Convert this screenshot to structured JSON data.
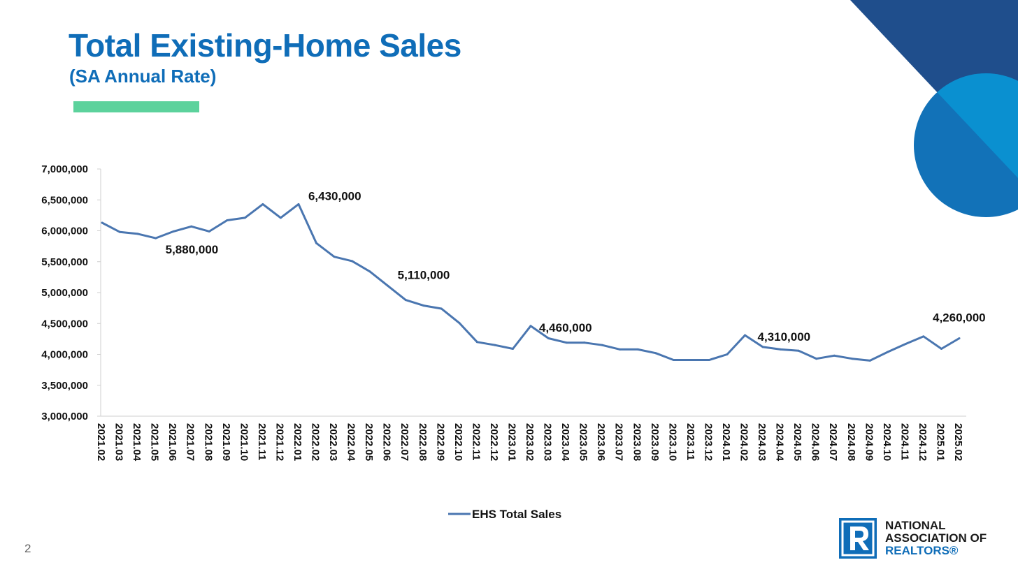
{
  "header": {
    "title": "Total Existing-Home Sales",
    "subtitle": "(SA Annual Rate)"
  },
  "colors": {
    "title": "#0f6db8",
    "accent_bar": "#5cd29c",
    "series_line": "#4a76b0",
    "deco_dark": "#1f4e8c",
    "deco_circle_light": "#0a90d0",
    "deco_circle_dark": "#1272b8"
  },
  "chart_data": {
    "type": "line",
    "title": "Total Existing-Home Sales",
    "subtitle": "(SA Annual Rate)",
    "xlabel": "",
    "ylabel": "",
    "ylim": [
      3000000,
      7000000
    ],
    "yticks": [
      3000000,
      3500000,
      4000000,
      4500000,
      5000000,
      5500000,
      6000000,
      6500000,
      7000000
    ],
    "ytick_labels": [
      "3,000,000",
      "3,500,000",
      "4,000,000",
      "4,500,000",
      "5,000,000",
      "5,500,000",
      "6,000,000",
      "6,500,000",
      "7,000,000"
    ],
    "grid": false,
    "legend_position": "bottom",
    "categories": [
      "2021.02",
      "2021.03",
      "2021.04",
      "2021.05",
      "2021.06",
      "2021.07",
      "2021.08",
      "2021.09",
      "2021.10",
      "2021.11",
      "2021.12",
      "2022.01",
      "2022.02",
      "2022.03",
      "2022.04",
      "2022.05",
      "2022.06",
      "2022.07",
      "2022.08",
      "2022.09",
      "2022.10",
      "2022.11",
      "2022.12",
      "2023.01",
      "2023.02",
      "2023.03",
      "2023.04",
      "2023.05",
      "2023.06",
      "2023.07",
      "2023.08",
      "2023.09",
      "2023.10",
      "2023.11",
      "2023.12",
      "2024.01",
      "2024.02",
      "2024.03",
      "2024.04",
      "2024.05",
      "2024.06",
      "2024.07",
      "2024.08",
      "2024.09",
      "2024.10",
      "2024.11",
      "2024.12",
      "2025.01",
      "2025.02"
    ],
    "series": [
      {
        "name": "EHS Total Sales",
        "values": [
          6130000,
          5980000,
          5950000,
          5880000,
          5990000,
          6070000,
          5990000,
          6170000,
          6210000,
          6430000,
          6210000,
          6430000,
          5800000,
          5580000,
          5510000,
          5340000,
          5110000,
          4880000,
          4790000,
          4740000,
          4510000,
          4200000,
          4150000,
          4090000,
          4460000,
          4260000,
          4190000,
          4190000,
          4150000,
          4080000,
          4080000,
          4020000,
          3910000,
          3910000,
          3910000,
          4000000,
          4310000,
          4120000,
          4080000,
          4060000,
          3930000,
          3980000,
          3930000,
          3900000,
          4040000,
          4170000,
          4290000,
          4090000,
          4260000
        ]
      }
    ],
    "annotations": [
      {
        "index": 3,
        "text": "5,880,000"
      },
      {
        "index": 11,
        "text": "6,430,000"
      },
      {
        "index": 16,
        "text": "5,110,000"
      },
      {
        "index": 24,
        "text": "4,460,000"
      },
      {
        "index": 36,
        "text": "4,310,000"
      },
      {
        "index": 48,
        "text": "4,260,000"
      }
    ]
  },
  "footer": {
    "page_number": "2",
    "logo_line1": "NATIONAL",
    "logo_line2": "ASSOCIATION OF",
    "logo_line3": "REALTORS®"
  }
}
